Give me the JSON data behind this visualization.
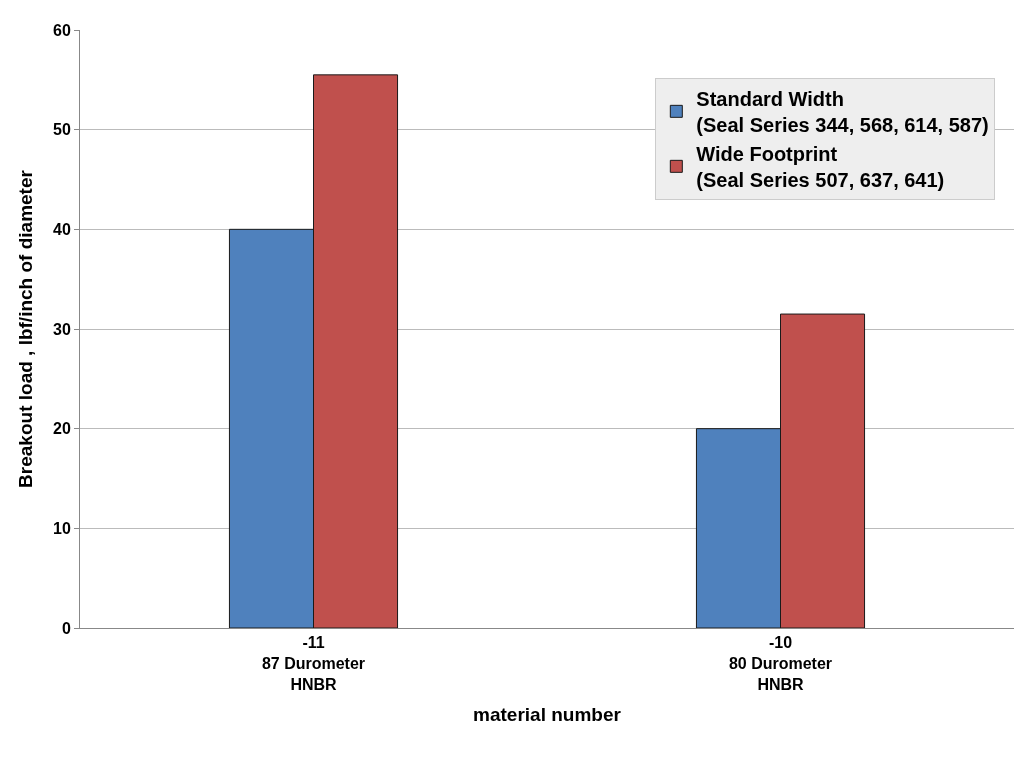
{
  "chart_data": {
    "type": "bar",
    "xlabel": "material number",
    "ylabel": "Breakout load , lbf/inch of diameter",
    "categories": [
      "-11\n87 Durometer\nHNBR",
      "-10\n80 Durometer\nHNBR"
    ],
    "series": [
      {
        "name": "Standard Width\n(Seal Series 344, 568, 614, 587)",
        "color": "#4f81bd",
        "values": [
          40,
          20
        ]
      },
      {
        "name": "Wide Footprint\n(Seal Series 507, 637, 641)",
        "color": "#c0504d",
        "values": [
          55.5,
          31.5
        ]
      }
    ],
    "ylim": [
      0,
      60
    ],
    "yticks": [
      0,
      10,
      20,
      30,
      40,
      50,
      60
    ],
    "grid": "y",
    "legend": "top right"
  }
}
